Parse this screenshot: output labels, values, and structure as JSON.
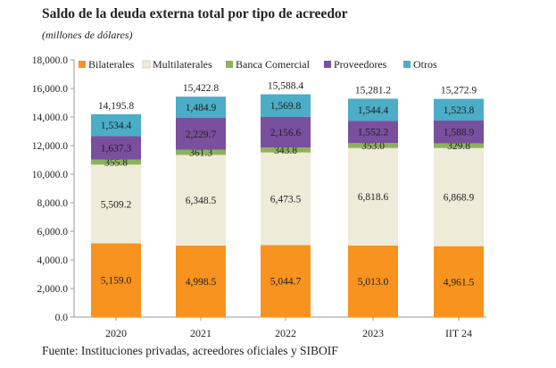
{
  "chart_data": {
    "type": "bar",
    "stacked": true,
    "title": "Saldo de la deuda externa total por tipo de acreedor",
    "subtitle": "(millones de dólares)",
    "source": "Fuente: Instituciones privadas, acreedores oficiales y SIBOIF",
    "categories": [
      "2020",
      "2021",
      "2022",
      "2023",
      "IIT 24"
    ],
    "ylim": [
      0,
      18000
    ],
    "yticks": [
      "0.0",
      "2,000.0",
      "4,000.0",
      "6,000.0",
      "8,000.0",
      "10,000.0",
      "12,000.0",
      "14,000.0",
      "16,000.0",
      "18,000.0"
    ],
    "grid": false,
    "legend_position": "top",
    "series": [
      {
        "name": "Bilaterales",
        "color": "#f7931e",
        "values": [
          5159.0,
          4998.5,
          5044.7,
          5013.0,
          4961.5
        ],
        "labels": [
          "5,159.0",
          "4,998.5",
          "5,044.7",
          "5,013.0",
          "4,961.5"
        ]
      },
      {
        "name": "Multilaterales",
        "color": "#efebd9",
        "values": [
          5509.2,
          6348.5,
          6473.5,
          6818.6,
          6868.9
        ],
        "labels": [
          "5,509.2",
          "6,348.5",
          "6,473.5",
          "6,818.6",
          "6,868.9"
        ]
      },
      {
        "name": "Banca Comercial",
        "color": "#8cb35a",
        "values": [
          355.8,
          361.3,
          343.8,
          353.0,
          329.8
        ],
        "labels": [
          "355.8",
          "361.3",
          "343.8",
          "353.0",
          "329.8"
        ]
      },
      {
        "name": "Proveedores",
        "color": "#7a4f9e",
        "values": [
          1637.3,
          2229.7,
          2156.6,
          1552.2,
          1588.9
        ],
        "labels": [
          "1,637.3",
          "2,229.7",
          "2,156.6",
          "1,552.2",
          "1,588.9"
        ]
      },
      {
        "name": "Otros",
        "color": "#4badc6",
        "values": [
          1534.4,
          1484.9,
          1569.8,
          1544.4,
          1523.8
        ],
        "labels": [
          "1,534.4",
          "1,484.9",
          "1,569.8",
          "1,544.4",
          "1,523.8"
        ]
      }
    ],
    "totals": [
      "14,195.8",
      "15,422.8",
      "15,588.4",
      "15,281.2",
      "15,272.9"
    ]
  }
}
